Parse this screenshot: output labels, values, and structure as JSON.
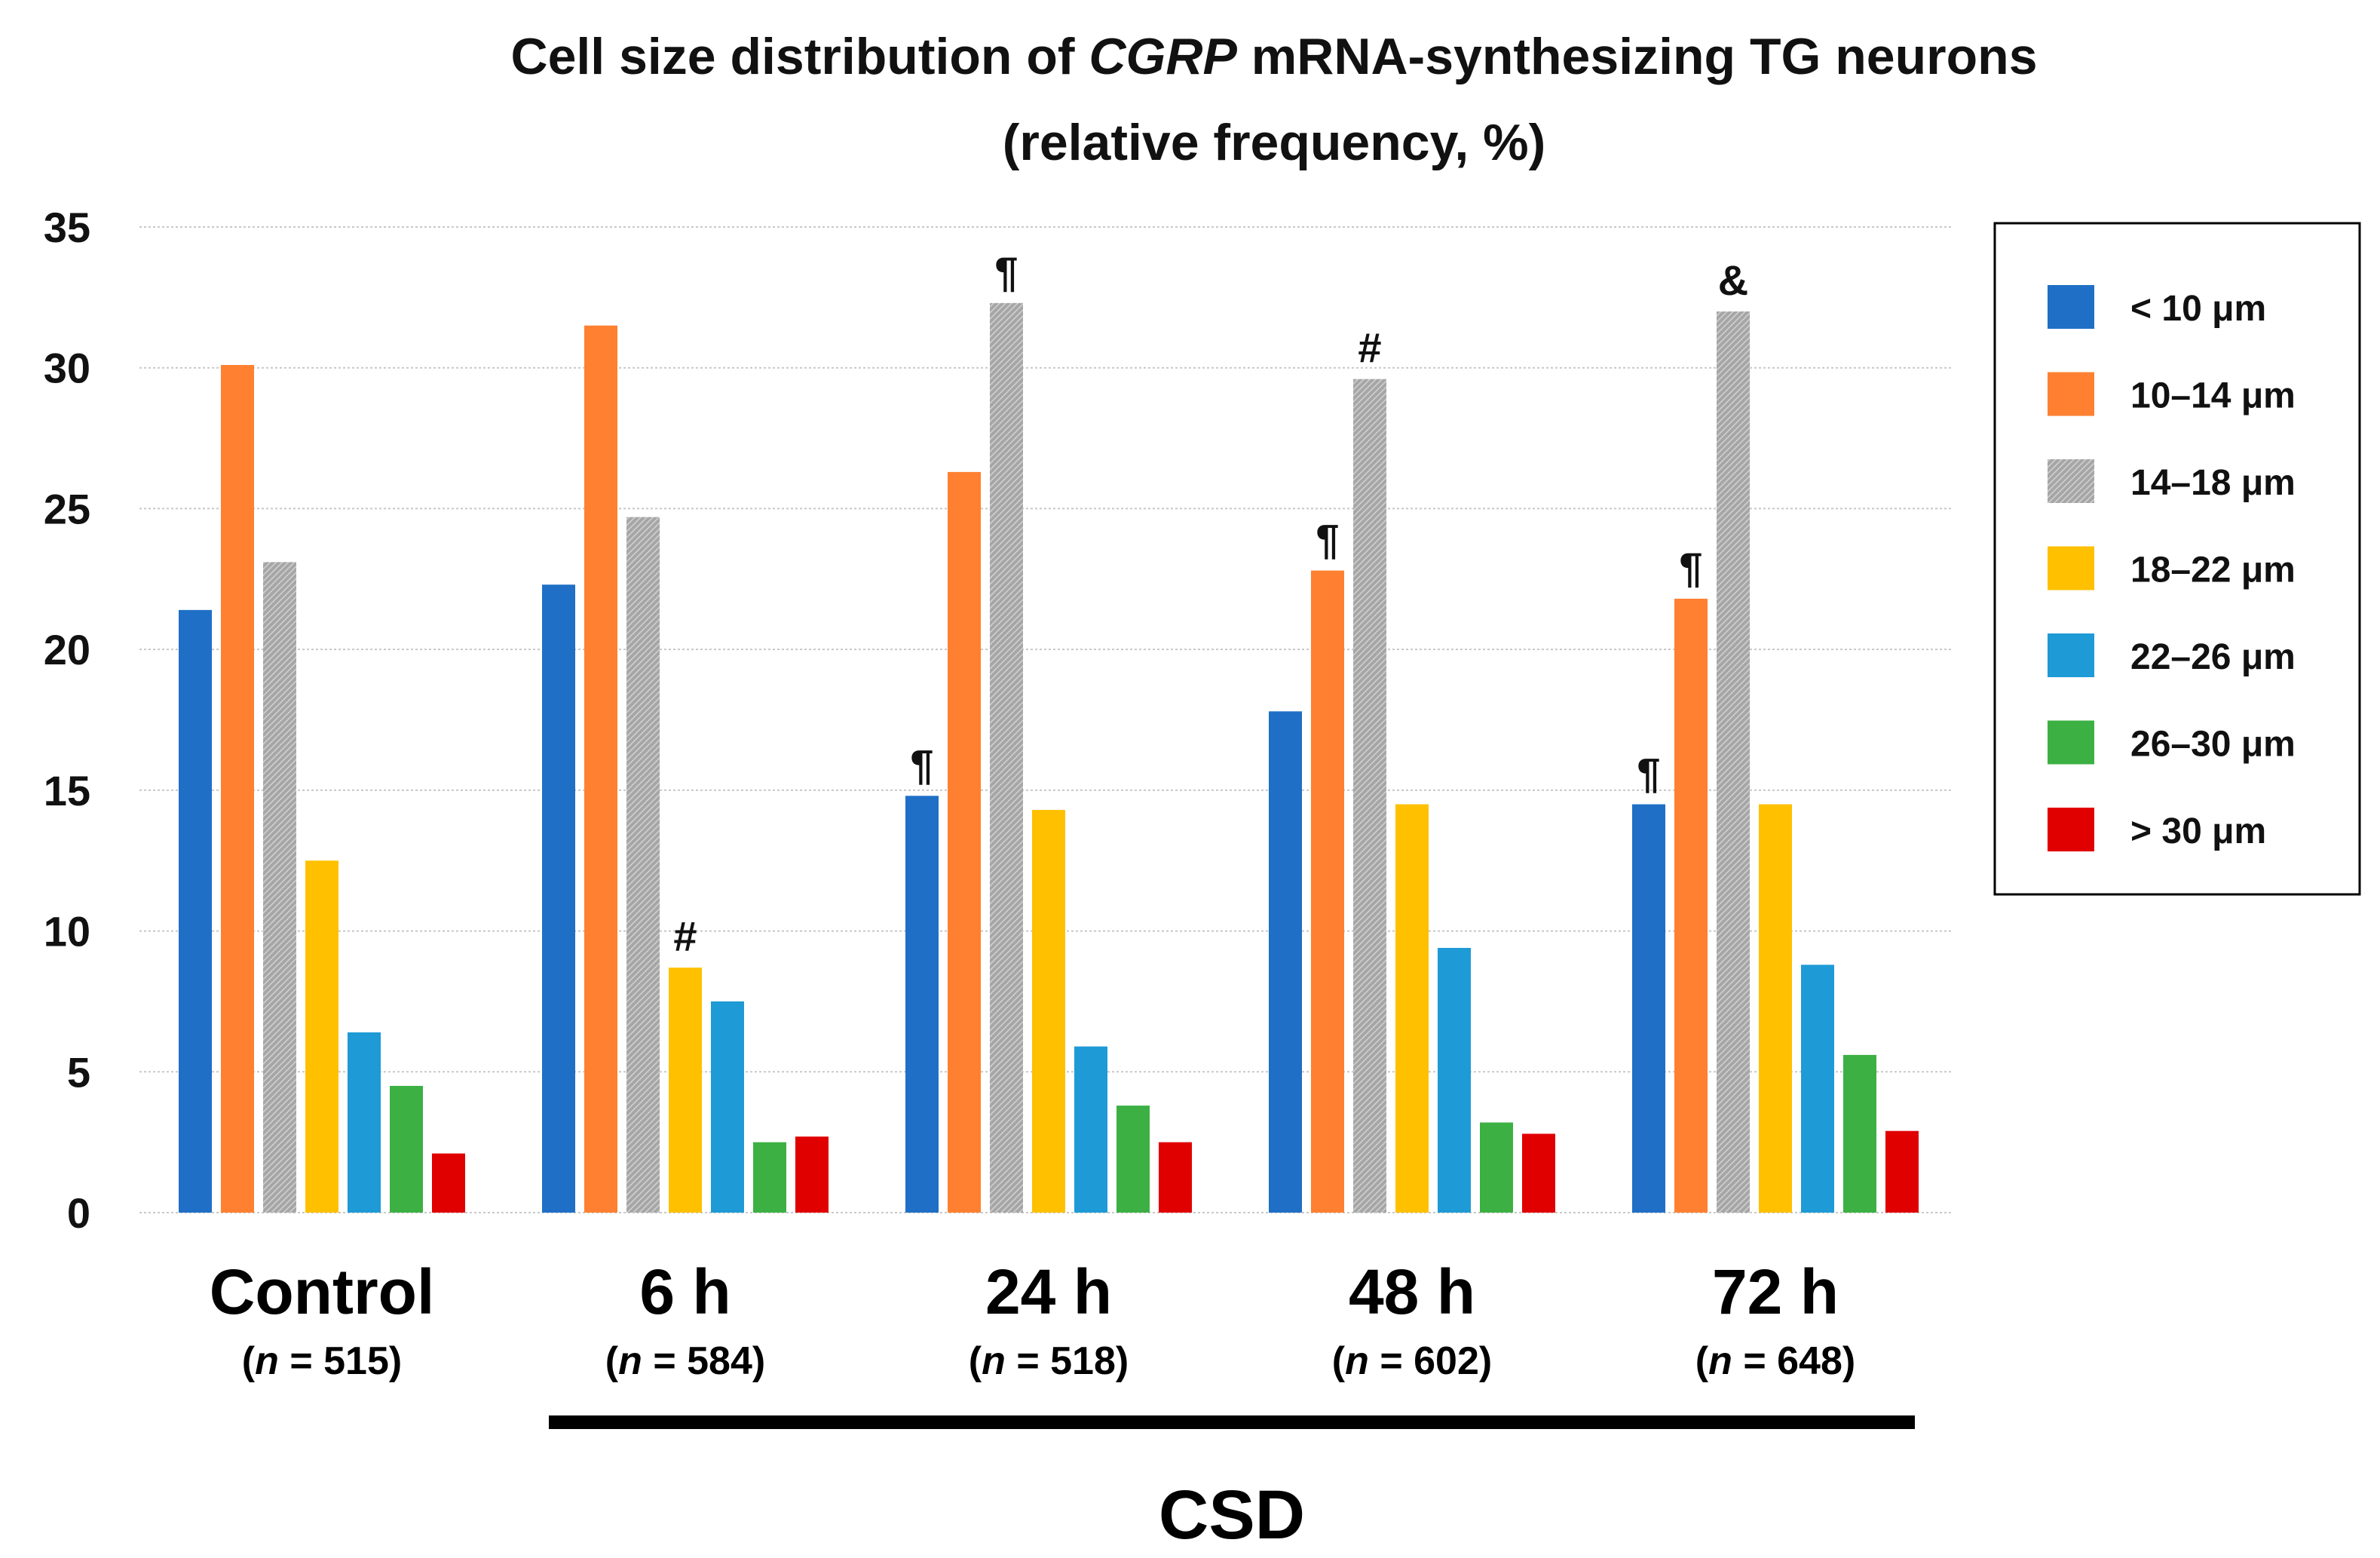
{
  "chart_data": {
    "type": "bar",
    "title_line1_a": "Cell size distribution of ",
    "title_line1_italic": "CGRP",
    "title_line1_b": " mRNA-synthesizing TG neurons",
    "title_line2": "(relative frequency, %)",
    "ylim": [
      0,
      35
    ],
    "yticks": [
      0,
      5,
      10,
      15,
      20,
      25,
      30,
      35
    ],
    "grid": true,
    "legend_position": "right",
    "categories": [
      "Control",
      "6 h",
      "24 h",
      "48 h",
      "72 h"
    ],
    "n_labels": [
      "515",
      "584",
      "518",
      "602",
      "648"
    ],
    "n_prefix_open": "(",
    "n_italic": "n",
    "n_equals": " = ",
    "n_close": ")",
    "group_label": "CSD",
    "series": [
      {
        "name": "< 10 μm",
        "color": "#1f6fc6",
        "values": [
          21.4,
          22.3,
          14.8,
          17.8,
          14.5
        ]
      },
      {
        "name": "10–14 μm",
        "color": "#ff8030",
        "values": [
          30.1,
          31.5,
          26.3,
          22.8,
          21.8
        ]
      },
      {
        "name": "14–18 μm",
        "color": "#a6a6a6",
        "values": [
          23.1,
          24.7,
          32.3,
          29.6,
          32.0
        ],
        "hatched": true
      },
      {
        "name": "18–22 μm",
        "color": "#ffc000",
        "values": [
          12.5,
          8.7,
          14.3,
          14.5,
          14.5
        ]
      },
      {
        "name": "22–26 μm",
        "color": "#1e9ad6",
        "values": [
          6.4,
          7.5,
          5.9,
          9.4,
          8.8
        ]
      },
      {
        "name": "26–30 μm",
        "color": "#3cb043",
        "values": [
          4.5,
          2.5,
          3.8,
          3.2,
          5.6
        ]
      },
      {
        "name": "> 30 μm",
        "color": "#e00000",
        "values": [
          2.1,
          2.7,
          2.5,
          2.8,
          2.9
        ]
      }
    ],
    "annotations": [
      {
        "category": 1,
        "series": 3,
        "text": "#"
      },
      {
        "category": 2,
        "series": 0,
        "text": "¶"
      },
      {
        "category": 2,
        "series": 2,
        "text": "¶"
      },
      {
        "category": 3,
        "series": 1,
        "text": "¶"
      },
      {
        "category": 3,
        "series": 2,
        "text": "#"
      },
      {
        "category": 4,
        "series": 0,
        "text": "¶"
      },
      {
        "category": 4,
        "series": 1,
        "text": "¶"
      },
      {
        "category": 4,
        "series": 2,
        "text": "&"
      }
    ]
  }
}
